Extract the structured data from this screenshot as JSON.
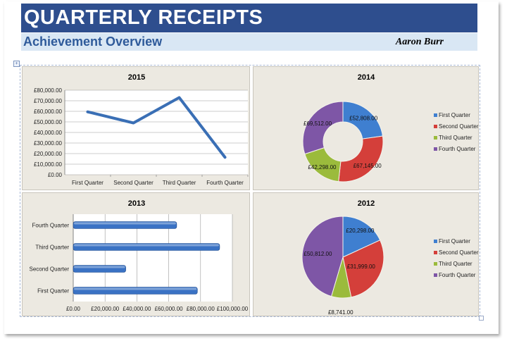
{
  "header": {
    "title": "QUARTERLY RECEIPTS",
    "subtitle": "Achievement Overview",
    "author": "Aaron Burr"
  },
  "colors": {
    "title_bar": "#2e4e8e",
    "subtitle_bar": "#d9e7f4",
    "panel_bg": "#ece9e1",
    "q1": "#3f7fd0",
    "q2": "#d43f3a",
    "q3": "#9bbb3c",
    "q4": "#7e56a6",
    "line": "#3a6fb5",
    "bar": "#3a72c4"
  },
  "icons": {
    "move_handle": "move-icon",
    "resize_handle": "resize-icon"
  },
  "chart_data": [
    {
      "id": "c2015",
      "type": "line",
      "title": "2015",
      "categories": [
        "First Quarter",
        "Second Quarter",
        "Third Quarter",
        "Fourth Quarter"
      ],
      "values": [
        59500,
        49000,
        73000,
        16500
      ],
      "ylim": [
        0,
        80000
      ],
      "yticks": [
        "£0.00",
        "£10,000.00",
        "£20,000.00",
        "£30,000.00",
        "£40,000.00",
        "£50,000.00",
        "£60,000.00",
        "£70,000.00",
        "£80,000.00"
      ],
      "grid": true
    },
    {
      "id": "c2014",
      "type": "pie",
      "variant": "doughnut",
      "title": "2014",
      "categories": [
        "First Quarter",
        "Second Quarter",
        "Third Quarter",
        "Fourth Quarter"
      ],
      "values": [
        52808,
        67145,
        42298,
        69512
      ],
      "labels": [
        "£52,808.00",
        "£67,145.00",
        "£42,298.00",
        "£69,512.00"
      ],
      "legend": "right"
    },
    {
      "id": "c2013",
      "type": "bar",
      "orientation": "horizontal",
      "title": "2013",
      "categories": [
        "First Quarter",
        "Second Quarter",
        "Third Quarter",
        "Fourth Quarter"
      ],
      "values": [
        78000,
        33000,
        92000,
        65000
      ],
      "xlim": [
        0,
        100000
      ],
      "xticks": [
        "£0.00",
        "£20,000.00",
        "£40,000.00",
        "£60,000.00",
        "£80,000.00",
        "£100,000.00"
      ],
      "grid": true
    },
    {
      "id": "c2012",
      "type": "pie",
      "title": "2012",
      "categories": [
        "First Quarter",
        "Second Quarter",
        "Third Quarter",
        "Fourth Quarter"
      ],
      "values": [
        20298,
        31999,
        8741,
        50812
      ],
      "labels": [
        "£20,298.00",
        "£31,999.00",
        "£8,741.00",
        "£50,812.00"
      ],
      "legend": "right"
    }
  ]
}
